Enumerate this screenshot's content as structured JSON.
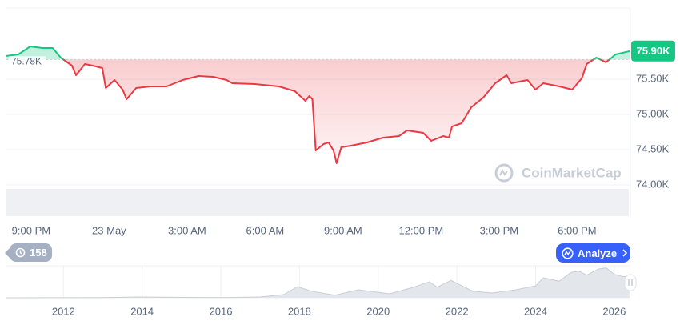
{
  "chart_data": [
    {
      "type": "line",
      "x": [
        -0.95,
        -0.49,
        -0.03,
        0.43,
        0.83,
        1.14,
        1.57,
        1.73,
        2.07,
        2.37,
        2.74,
        2.87,
        3.21,
        3.52,
        3.67,
        4.04,
        4.59,
        5.21,
        5.83,
        6.44,
        7.0,
        7.52,
        7.74,
        8.6,
        9.53,
        10.14,
        10.55,
        10.7,
        10.82,
        10.95,
        11.25,
        11.44,
        11.63,
        11.75,
        11.93,
        12.3,
        12.92,
        13.54,
        14.15,
        14.46,
        15.08,
        15.39,
        15.85,
        16.07,
        16.19,
        16.56,
        16.93,
        17.39,
        17.85,
        18.29,
        18.47,
        19.09,
        19.4,
        19.7,
        20.32,
        20.81,
        21.18,
        21.37,
        21.74,
        22.11,
        22.48,
        23.03
      ],
      "values": [
        75830,
        75852,
        75966,
        75943,
        75943,
        75807,
        75693,
        75557,
        75716,
        75693,
        75659,
        75375,
        75489,
        75352,
        75216,
        75375,
        75398,
        75398,
        75489,
        75545,
        75534,
        75489,
        75443,
        75432,
        75398,
        75330,
        75193,
        75261,
        75216,
        74489,
        74580,
        74602,
        74489,
        74307,
        74534,
        74557,
        74602,
        74670,
        74693,
        74773,
        74739,
        74625,
        74693,
        74670,
        74830,
        74875,
        75102,
        75239,
        75443,
        75557,
        75443,
        75489,
        75352,
        75443,
        75398,
        75352,
        75511,
        75716,
        75807,
        75739,
        75852,
        75900
      ],
      "color_above": "#16c784",
      "color_below": "#ea3943",
      "reference": {
        "value": 75780,
        "label": "75.78K"
      },
      "last_price": {
        "value": 75900,
        "label": "75.90K"
      },
      "xlim": [
        -0.95,
        23.05
      ],
      "xticks": [
        {
          "value": 0,
          "label": "9:00 PM"
        },
        {
          "value": 3,
          "label": "23 May"
        },
        {
          "value": 6,
          "label": "3:00 AM"
        },
        {
          "value": 9,
          "label": "6:00 AM"
        },
        {
          "value": 12,
          "label": "9:00 AM"
        },
        {
          "value": 15,
          "label": "12:00 PM"
        },
        {
          "value": 18,
          "label": "3:00 PM"
        },
        {
          "value": 21,
          "label": "6:00 PM"
        }
      ],
      "ylim": [
        73557,
        76511
      ],
      "yticks": [
        {
          "value": 74000,
          "label": "74.00K"
        },
        {
          "value": 74500,
          "label": "74.50K"
        },
        {
          "value": 75000,
          "label": "75.00K"
        },
        {
          "value": 75500,
          "label": "75.50K"
        }
      ],
      "grid": true,
      "watermark": "CoinMarketCap"
    },
    {
      "type": "area",
      "x": [
        2010.55,
        2013.0,
        2013.9,
        2014.5,
        2016.0,
        2017.0,
        2017.6,
        2017.95,
        2018.3,
        2018.9,
        2019.5,
        2020.0,
        2020.3,
        2020.9,
        2021.3,
        2021.5,
        2021.85,
        2022.4,
        2022.9,
        2023.5,
        2024.0,
        2024.2,
        2024.6,
        2024.9,
        2025.1,
        2025.3,
        2025.6,
        2025.8,
        2026.0,
        2026.2,
        2026.41
      ],
      "values": [
        0,
        1,
        3,
        2,
        1,
        3,
        12,
        42,
        25,
        10,
        30,
        20,
        15,
        40,
        60,
        40,
        65,
        25,
        18,
        30,
        45,
        75,
        62,
        95,
        100,
        85,
        108,
        112,
        88,
        80,
        78
      ],
      "color": "#e3e6eb",
      "xlim": [
        2010.55,
        2026.41
      ],
      "ylim": [
        0,
        120
      ],
      "xticks": [
        2012,
        2014,
        2016,
        2018,
        2020,
        2022,
        2024,
        2026
      ],
      "grid": true
    }
  ],
  "controls": {
    "history": "158",
    "analyze": "Analyze"
  }
}
